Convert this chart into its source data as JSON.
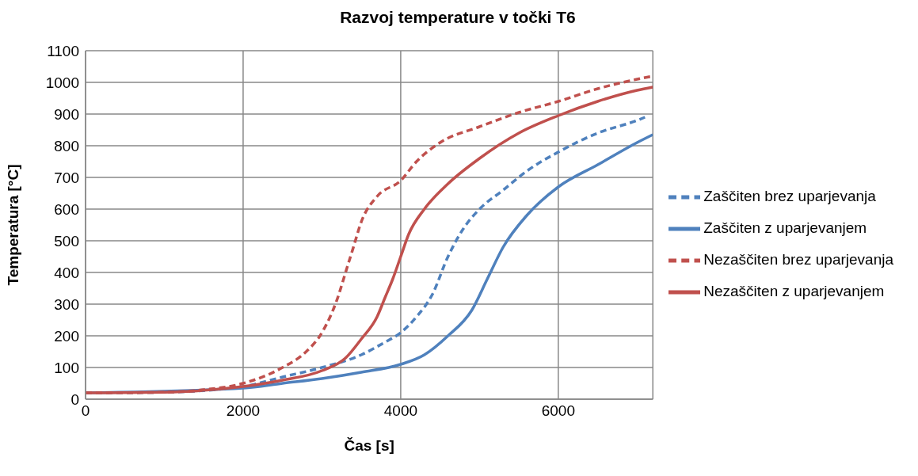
{
  "chart_data": {
    "type": "line",
    "title": "Razvoj temperature v točki T6",
    "xlabel": "Čas [s]",
    "ylabel": "Temperatura [°C]",
    "xlim": [
      0,
      7200
    ],
    "xticks": [
      0,
      2000,
      4000,
      6000
    ],
    "ylim": [
      0,
      1100
    ],
    "yticks": [
      0,
      100,
      200,
      300,
      400,
      500,
      600,
      700,
      800,
      900,
      1000,
      1100
    ],
    "grid": true,
    "legend": "right",
    "marker": "none",
    "series": [
      {
        "name": "Zaščiten brez uparjevanja",
        "color": "#4f81bd",
        "line_style": "dashed",
        "x": [
          0,
          1000,
          2000,
          2500,
          3000,
          3500,
          3800,
          4000,
          4200,
          4400,
          4600,
          4800,
          5000,
          5300,
          5600,
          6000,
          6500,
          7000,
          7100
        ],
        "values": [
          20,
          22,
          40,
          70,
          100,
          140,
          180,
          210,
          260,
          330,
          450,
          540,
          600,
          660,
          720,
          780,
          840,
          880,
          890
        ]
      },
      {
        "name": "Zaščiten z uparjevanjem",
        "color": "#4f81bd",
        "line_style": "solid",
        "x": [
          0,
          2000,
          2500,
          3000,
          3500,
          4000,
          4300,
          4600,
          4900,
          5100,
          5300,
          5600,
          6000,
          6500,
          7000,
          7200
        ],
        "values": [
          20,
          35,
          50,
          65,
          85,
          110,
          140,
          200,
          280,
          380,
          480,
          580,
          670,
          740,
          810,
          835
        ]
      },
      {
        "name": "Nezaščiten brez uparjevanja",
        "color": "#c0504d",
        "line_style": "dashed",
        "x": [
          0,
          1000,
          1500,
          2000,
          2500,
          2800,
          3000,
          3200,
          3300,
          3400,
          3500,
          3700,
          4000,
          4200,
          4500,
          5000,
          5500,
          6000,
          6500,
          7000,
          7200
        ],
        "values": [
          20,
          22,
          30,
          50,
          100,
          150,
          210,
          320,
          400,
          480,
          560,
          640,
          690,
          750,
          810,
          860,
          905,
          940,
          980,
          1010,
          1020
        ]
      },
      {
        "name": "Nezaščiten z uparjevanjem",
        "color": "#c0504d",
        "line_style": "solid",
        "x": [
          0,
          1000,
          1500,
          2000,
          2500,
          3000,
          3300,
          3500,
          3700,
          3800,
          3900,
          4000,
          4100,
          4300,
          4600,
          5000,
          5500,
          6000,
          6500,
          7000,
          7200
        ],
        "values": [
          20,
          22,
          28,
          40,
          60,
          90,
          130,
          190,
          260,
          320,
          380,
          450,
          520,
          600,
          680,
          760,
          840,
          895,
          940,
          975,
          985
        ]
      }
    ]
  }
}
